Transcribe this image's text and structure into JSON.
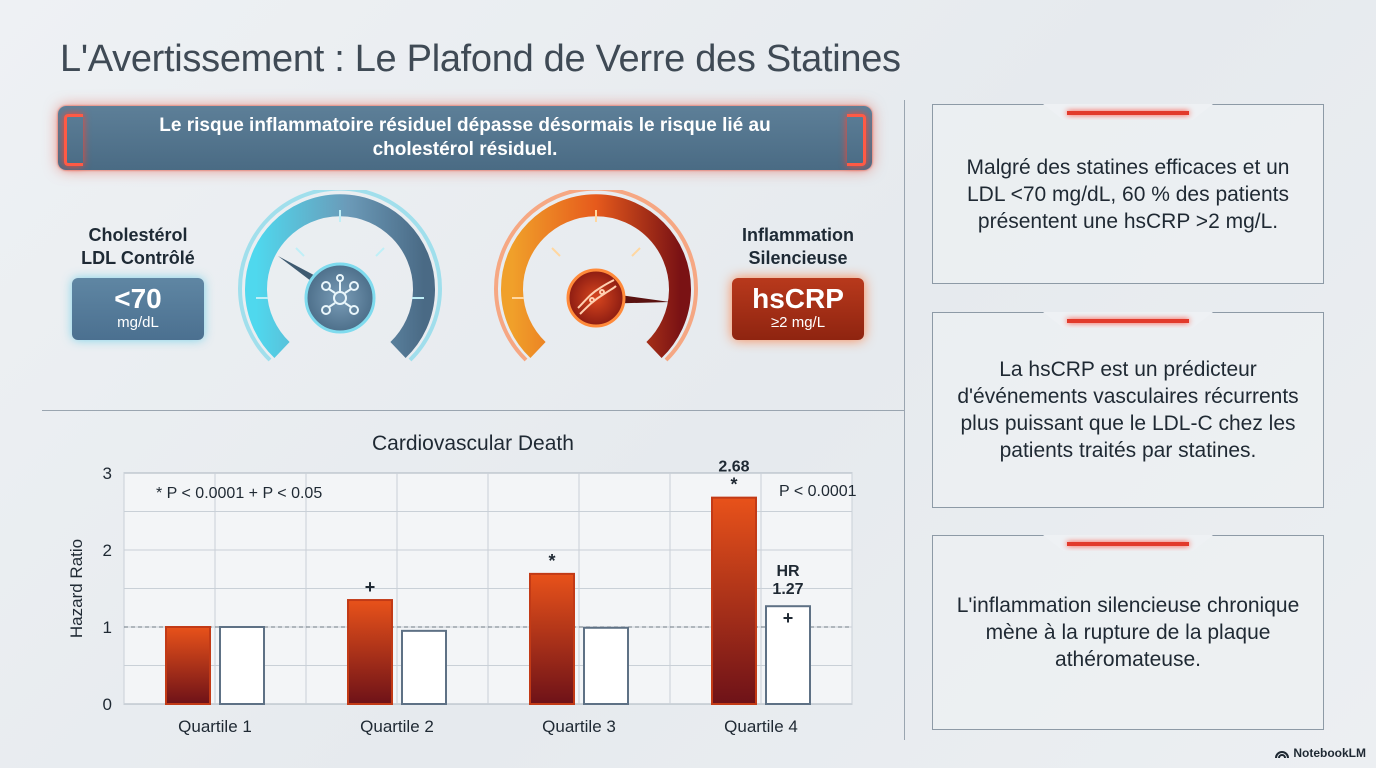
{
  "title": "L'Avertissement : Le Plafond de Verre des Statines",
  "banner": "Le risque inflammatoire résiduel dépasse désormais le risque lié au cholestérol résiduel.",
  "ldl": {
    "label": "Cholestérol LDL Contrôlé",
    "value": "<70",
    "unit": "mg/dL",
    "icon": "molecule-icon"
  },
  "inflammation": {
    "label": "Inflammation Silencieuse",
    "value": "hsCRP",
    "unit": "≥2 mg/L",
    "icon": "artery-icon"
  },
  "cards": [
    "Malgré des statines efficaces et un LDL <70 mg/dL, 60 % des patients présentent une hsCRP >2 mg/L.",
    "La hsCRP est un prédicteur d'événements vasculaires récurrents plus puissant que le LDL-C chez les patients traités par statines.",
    "L'inflammation silencieuse chronique mène à la rupture de la plaque athéromateuse."
  ],
  "brand": "NotebookLM",
  "colors": {
    "accent_red": "#e23a2b",
    "bar_dark": "#7a1416",
    "bar_light": "#e8521a",
    "panel_blue": "#4e7390"
  },
  "chart_data": {
    "type": "bar",
    "title": "Cardiovascular Death",
    "xlabel": "",
    "ylabel": "Hazard Ratio",
    "ylim": [
      0,
      3
    ],
    "yticks": [
      0,
      1,
      2,
      3
    ],
    "categories": [
      "Quartile 1",
      "Quartile 2",
      "Quartile 3",
      "Quartile 4"
    ],
    "series": [
      {
        "values": [
          1.0,
          1.35,
          1.69,
          2.68
        ],
        "markers": [
          "",
          "+",
          "*",
          "*"
        ],
        "style": "orange-gradient"
      },
      {
        "values": [
          1.0,
          0.95,
          0.99,
          1.27
        ],
        "markers": [
          "",
          "",
          "",
          "+"
        ],
        "style": "white"
      }
    ],
    "reference_line": 1,
    "grid": true,
    "legend_note": "* P < 0.0001   + P < 0.05",
    "annotations": [
      {
        "category": "Quartile 4",
        "series": 0,
        "text": "HR 2.68"
      },
      {
        "category": "Quartile 4",
        "series": 1,
        "text": "HR 1.27"
      },
      {
        "category": "Quartile 4",
        "text": "P < 0.0001"
      }
    ]
  }
}
